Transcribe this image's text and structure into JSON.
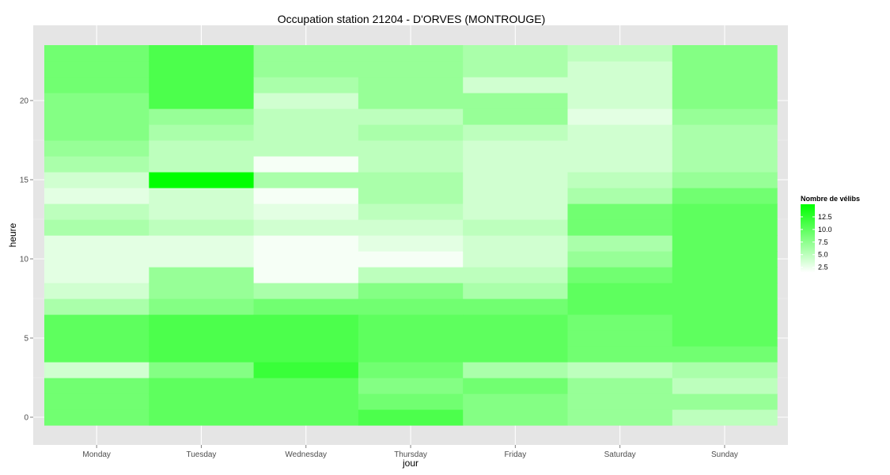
{
  "chart_data": {
    "type": "heatmap",
    "title": "Occupation station 21204 - D'ORVES (MONTROUGE)",
    "xlabel": "jour",
    "ylabel": "heure",
    "x_categories": [
      "Monday",
      "Tuesday",
      "Wednesday",
      "Thursday",
      "Friday",
      "Saturday",
      "Sunday"
    ],
    "y_hours": [
      0,
      1,
      2,
      3,
      4,
      5,
      6,
      7,
      8,
      9,
      10,
      11,
      12,
      13,
      14,
      15,
      16,
      17,
      18,
      19,
      20,
      21,
      22,
      23
    ],
    "y_ticks": [
      0,
      5,
      10,
      15,
      20
    ],
    "y_range": [
      -1,
      24
    ],
    "grid": true,
    "legend": {
      "title": "Nombre de vélibs",
      "position": "right",
      "ticks": [
        12.5,
        10.0,
        7.5,
        5.0,
        2.5
      ],
      "tick_labels": [
        "12.5",
        "10.0",
        "7.5",
        "5.0",
        "2.5"
      ],
      "min": 1.5,
      "max": 15,
      "low_color": "#ffffff",
      "high_color": "#00ff00"
    },
    "values": [
      [
        9,
        9,
        9,
        4,
        10,
        10,
        10,
        6,
        4,
        3,
        3,
        3,
        6,
        5,
        3,
        4,
        6,
        7,
        8,
        8,
        8,
        9,
        9,
        9
      ],
      [
        10,
        10,
        10,
        8,
        11,
        11,
        11,
        8,
        7,
        7,
        3,
        3,
        5,
        4,
        4,
        15,
        5,
        5,
        6,
        7,
        11,
        11,
        11,
        11
      ],
      [
        10,
        10,
        10,
        12,
        11,
        11,
        11,
        9,
        6,
        2,
        2,
        2,
        4,
        3,
        2,
        6,
        2,
        5,
        5,
        5,
        4,
        6,
        7,
        7
      ],
      [
        11,
        9,
        8,
        9,
        10,
        10,
        10,
        9,
        8,
        5,
        2,
        3,
        4,
        5,
        6,
        6,
        5,
        5,
        6,
        5,
        7,
        7,
        7,
        7
      ],
      [
        8,
        8,
        9,
        6,
        10,
        10,
        10,
        9,
        6,
        5,
        4,
        4,
        5,
        4,
        4,
        4,
        4,
        4,
        5,
        7,
        7,
        4,
        6,
        6
      ],
      [
        7,
        7,
        7,
        5,
        9,
        9,
        9,
        10,
        10,
        9,
        7,
        6,
        9,
        9,
        6,
        5,
        4,
        4,
        4,
        3,
        4,
        4,
        4,
        5
      ],
      [
        5,
        7,
        5,
        6,
        9,
        10,
        10,
        10,
        10,
        10,
        10,
        10,
        10,
        10,
        9,
        7,
        6,
        6,
        6,
        7,
        8,
        8,
        8,
        8
      ]
    ]
  }
}
